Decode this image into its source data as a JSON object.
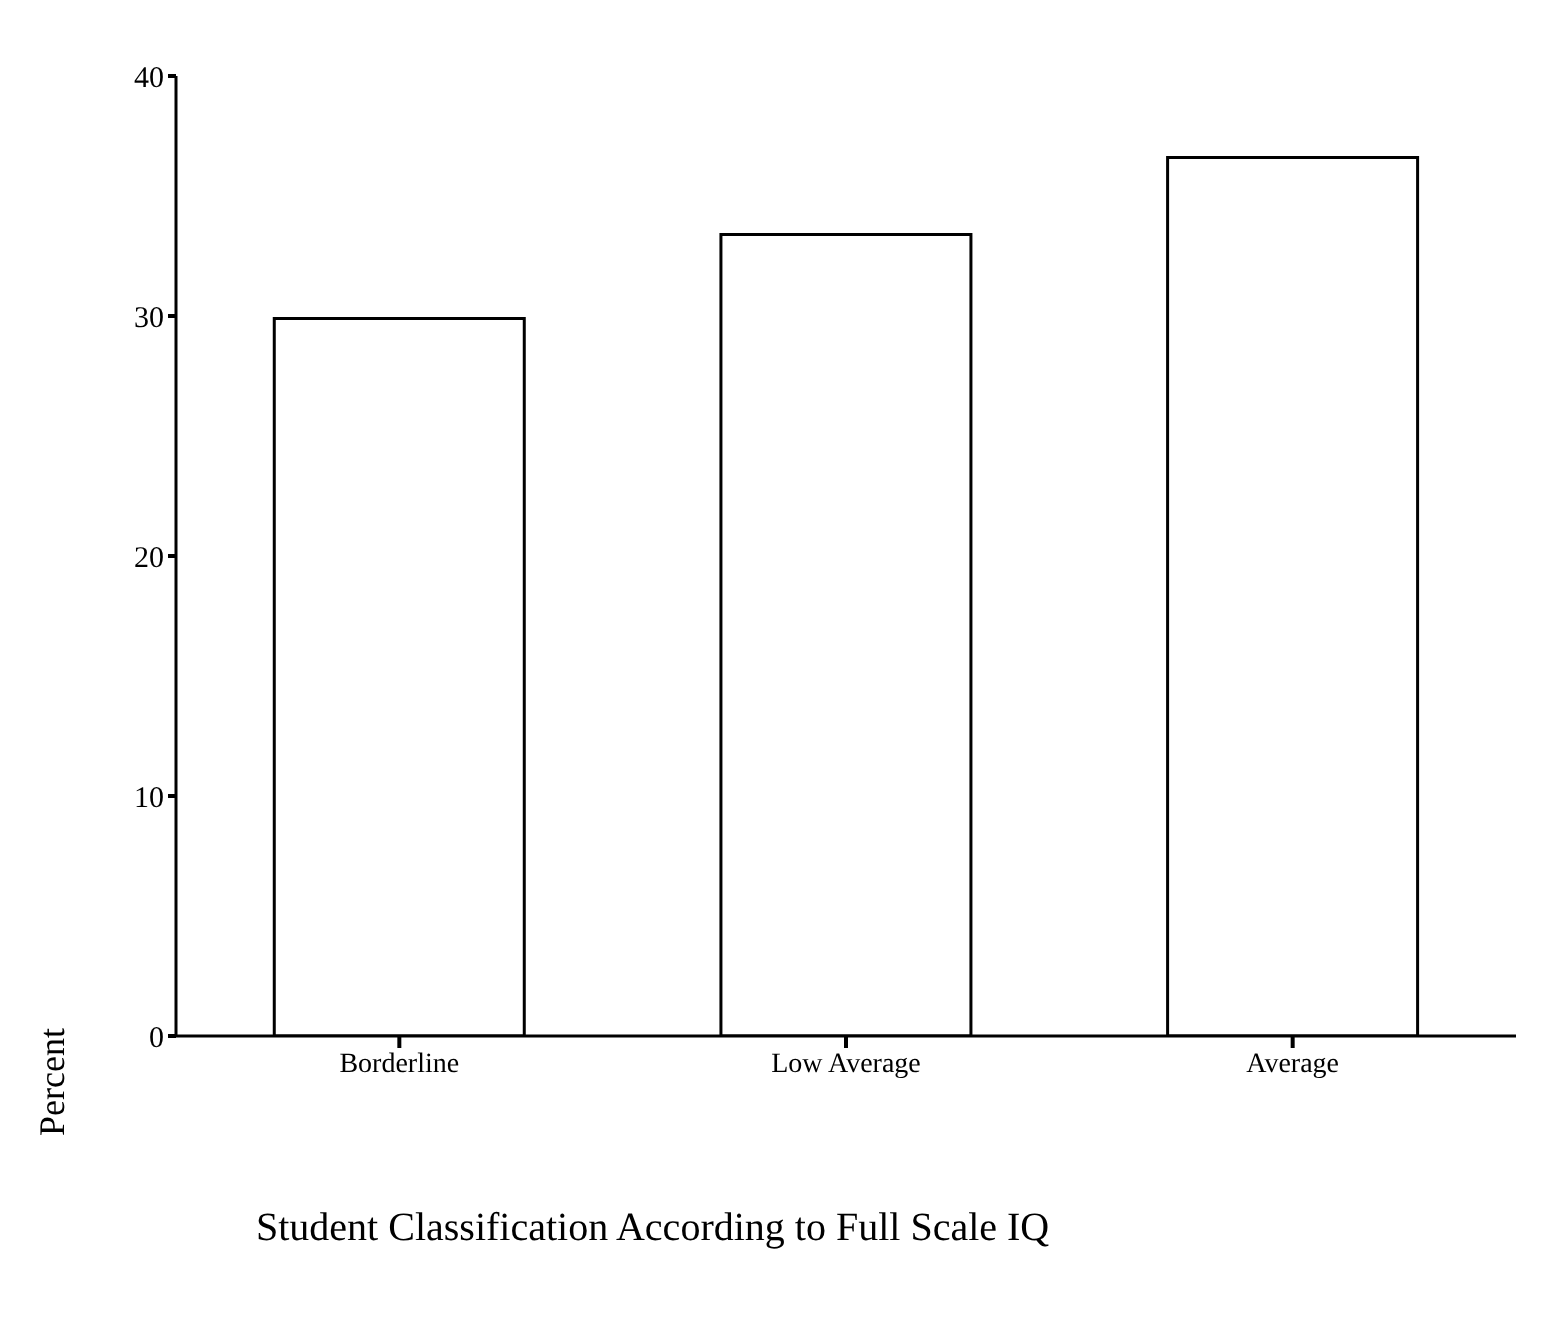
{
  "chart_data": {
    "type": "bar",
    "xlabel": "Student Classification According to Full Scale IQ",
    "ylabel": "Percent",
    "categories": [
      "Borderline",
      "Low Average",
      "Average"
    ],
    "series": [
      {
        "color": "#ffffff",
        "values": [
          29.9,
          33.4,
          36.6
        ]
      }
    ],
    "ylim": [
      0,
      40
    ],
    "yticks": [
      0,
      10,
      20,
      30,
      40
    ],
    "grid": false,
    "legend": false
  }
}
